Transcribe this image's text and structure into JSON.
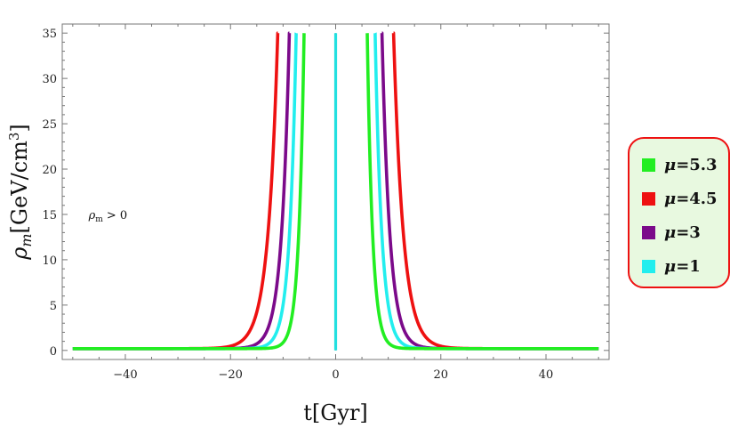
{
  "chart_data": {
    "type": "line",
    "xlabel": "t[Gyr]",
    "ylabel_symbol": "ρ",
    "ylabel_sub": "m",
    "ylabel_unit": "[GeV/cm",
    "ylabel_exp": "3",
    "ylabel_close": "]",
    "xlim": [
      -52,
      52
    ],
    "ylim": [
      -1,
      36
    ],
    "x_ticks": [
      -40,
      -20,
      0,
      20,
      40
    ],
    "x_tick_labels": [
      "−40",
      "−20",
      "0",
      "20",
      "40"
    ],
    "y_ticks": [
      0,
      5,
      10,
      15,
      20,
      25,
      30,
      35
    ],
    "y_tick_labels": [
      "0",
      "5",
      "10",
      "15",
      "20",
      "25",
      "30",
      "35"
    ],
    "annotation": {
      "symbol": "ρ",
      "sub": "m",
      "text": " > 0",
      "x": -47,
      "y": 14.5
    },
    "vertical_line": {
      "x": 0,
      "ymin": 0,
      "ymax": 35,
      "color": "#22e0e0"
    },
    "series": [
      {
        "name": "μ=5.3",
        "color": "#22ee22",
        "pole": 6.0
      },
      {
        "name": "μ=4.5",
        "color": "#ee1111",
        "pole": 11.0
      },
      {
        "name": "μ=3",
        "color": "#7b0a8a",
        "pole": 8.8
      },
      {
        "name": "μ=1",
        "color": "#22eeee",
        "pole": 7.5
      }
    ],
    "x_range": [
      -50,
      50
    ],
    "y_cap": 35,
    "baseline": 0.2,
    "legend_position": "right"
  },
  "legend": {
    "items": [
      {
        "mu": "μ",
        "value": "=5.3",
        "color": "#22ee22"
      },
      {
        "mu": "μ",
        "value": "=4.5",
        "color": "#ee1111"
      },
      {
        "mu": "μ",
        "value": "=3",
        "color": "#7b0a8a"
      },
      {
        "mu": "μ",
        "value": "=1",
        "color": "#22eeee"
      }
    ]
  }
}
